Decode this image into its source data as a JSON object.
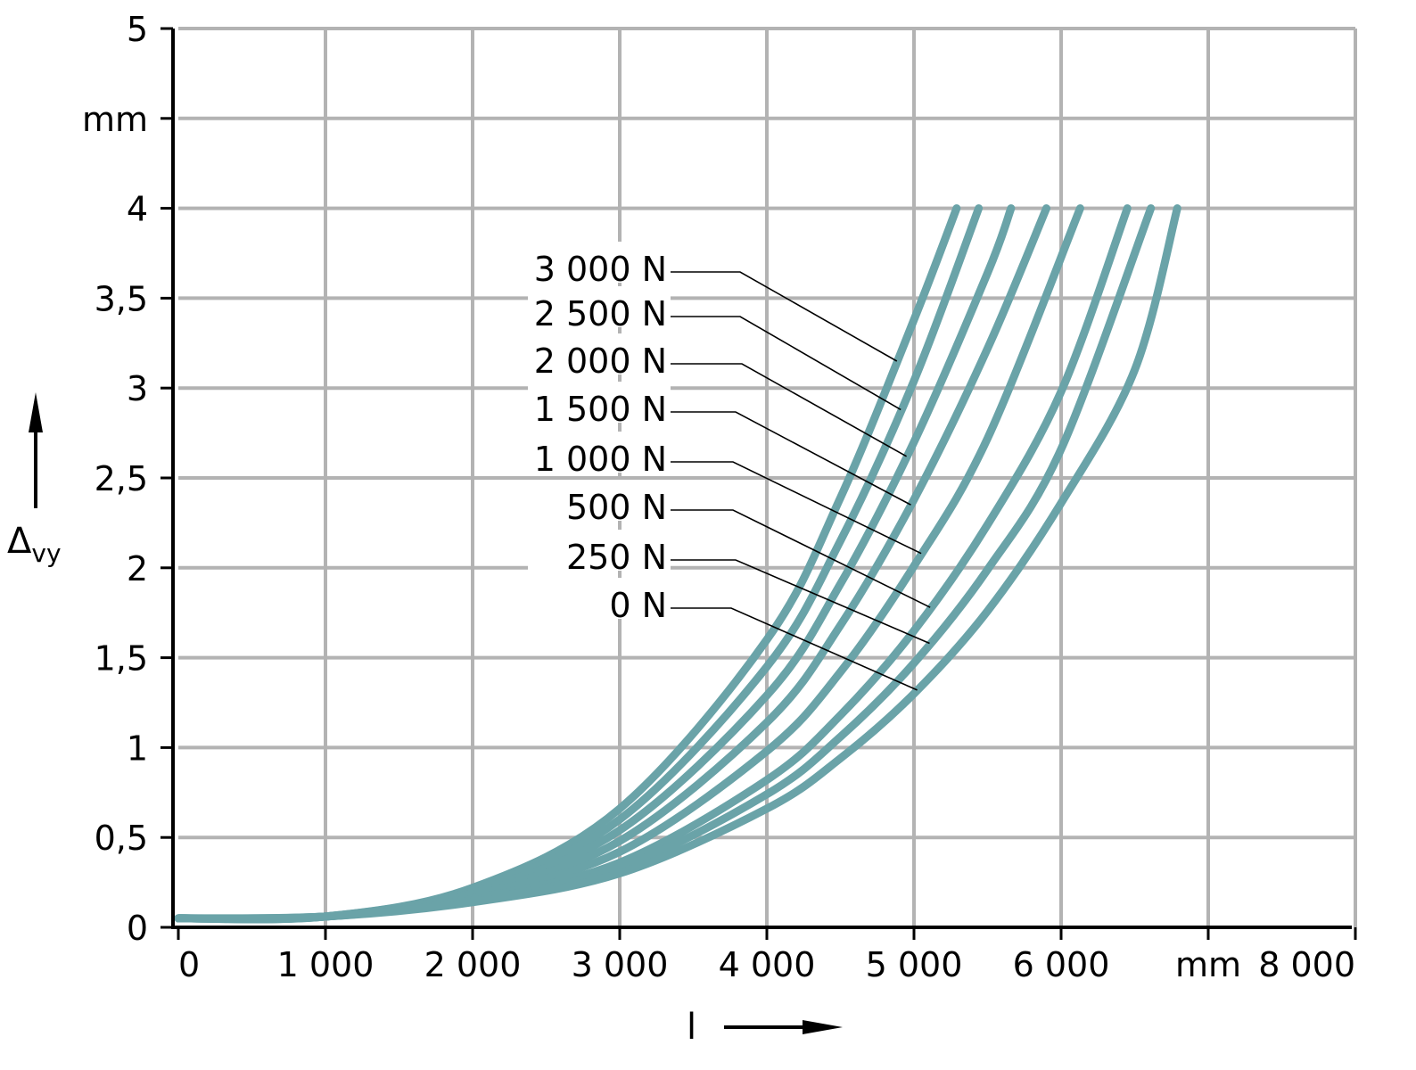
{
  "chart_data": {
    "type": "line",
    "title": "",
    "x_axis": {
      "label": "l",
      "unit": "mm",
      "range": [
        0,
        8000
      ],
      "ticks": [
        0,
        1000,
        2000,
        3000,
        4000,
        5000,
        6000,
        7000,
        8000
      ],
      "tick_labels": [
        "0",
        "1 000",
        "2 000",
        "3 000",
        "4 000",
        "5 000",
        "6 000",
        "mm",
        "8 000"
      ]
    },
    "y_axis": {
      "label": "Δ",
      "label_subscript": "vy",
      "unit": "mm",
      "range": [
        0,
        5
      ],
      "ticks": [
        0,
        0.5,
        1,
        1.5,
        2,
        2.5,
        3,
        3.5,
        4,
        4.5,
        5
      ],
      "tick_labels": [
        "0",
        "0,5",
        "1",
        "1,5",
        "2",
        "2,5",
        "3",
        "3,5",
        "4",
        "mm",
        "5"
      ]
    },
    "grid": true,
    "curve_color": "#6aa3a8",
    "series": [
      {
        "name": "3 000 N",
        "x": [
          0,
          1000,
          2000,
          3000,
          4000,
          4500,
          5000,
          5290
        ],
        "y": [
          0.05,
          0.06,
          0.22,
          0.66,
          1.6,
          2.39,
          3.38,
          4.0
        ]
      },
      {
        "name": "2 500 N",
        "x": [
          0,
          1000,
          2000,
          3000,
          4000,
          4500,
          5000,
          5440
        ],
        "y": [
          0.05,
          0.06,
          0.21,
          0.6,
          1.45,
          2.15,
          3.04,
          4.0
        ]
      },
      {
        "name": "2 000 N",
        "x": [
          0,
          1000,
          2000,
          3000,
          4000,
          4500,
          5000,
          5500,
          5660
        ],
        "y": [
          0.05,
          0.06,
          0.2,
          0.54,
          1.29,
          1.91,
          2.7,
          3.64,
          4.0
        ]
      },
      {
        "name": "1 500 N",
        "x": [
          0,
          1000,
          2000,
          3000,
          4000,
          4500,
          5000,
          5500,
          5900
        ],
        "y": [
          0.05,
          0.06,
          0.19,
          0.48,
          1.14,
          1.68,
          2.38,
          3.22,
          4.0
        ]
      },
      {
        "name": "1 000 N",
        "x": [
          0,
          1000,
          2000,
          3000,
          4000,
          4500,
          5000,
          5500,
          6130
        ],
        "y": [
          0.05,
          0.06,
          0.18,
          0.42,
          0.98,
          1.42,
          2.01,
          2.72,
          4.0
        ]
      },
      {
        "name": "500 N",
        "x": [
          0,
          1000,
          2000,
          3000,
          4000,
          4500,
          5000,
          5500,
          6000,
          6450
        ],
        "y": [
          0.05,
          0.06,
          0.16,
          0.36,
          0.82,
          1.18,
          1.65,
          2.24,
          2.98,
          4.0
        ]
      },
      {
        "name": "250 N",
        "x": [
          0,
          1000,
          2000,
          3000,
          4000,
          4500,
          5000,
          5500,
          6000,
          6610
        ],
        "y": [
          0.05,
          0.06,
          0.15,
          0.33,
          0.74,
          1.06,
          1.47,
          1.99,
          2.66,
          4.0
        ]
      },
      {
        "name": "0 N",
        "x": [
          0,
          1000,
          2000,
          3000,
          4000,
          4500,
          5000,
          5500,
          6000,
          6500,
          6790
        ],
        "y": [
          0.05,
          0.06,
          0.14,
          0.3,
          0.66,
          0.94,
          1.3,
          1.76,
          2.36,
          3.1,
          4.0
        ]
      }
    ]
  }
}
